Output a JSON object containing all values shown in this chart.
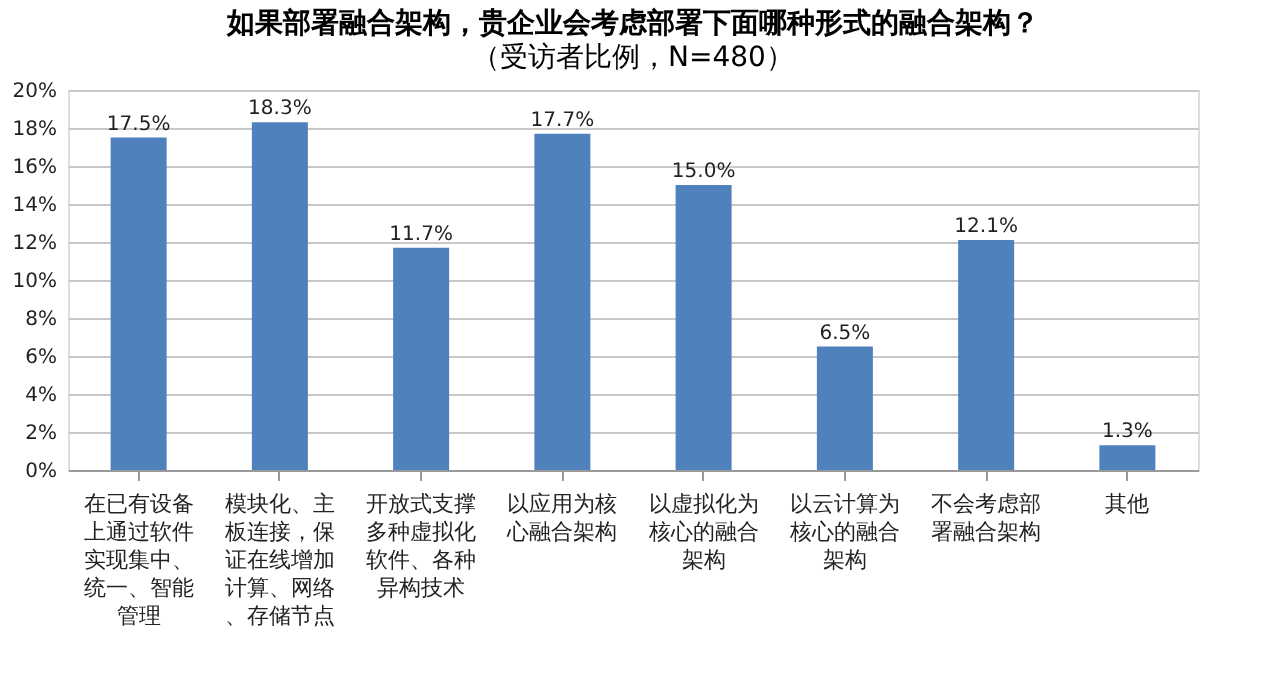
{
  "chart_data": {
    "type": "bar",
    "title": "如果部署融合架构，贵企业会考虑部署下面哪种形式的融合架构？",
    "subtitle": "（受访者比例，N=480）",
    "categories": [
      "在已有设备上通过软件实现集中、统一、智能管理",
      "模块化、主板连接，保证在线增加计算、网络、存储节点",
      "开放式支撑多种虚拟化软件、各种异构技术",
      "以应用为核心融合架构",
      "以虚拟化为核心的融合架构",
      "以云计算为核心的融合架构",
      "不会考虑部署融合架构",
      "其他"
    ],
    "values": [
      17.5,
      18.3,
      11.7,
      17.7,
      15.0,
      6.5,
      12.1,
      1.3
    ],
    "value_labels": [
      "17.5%",
      "18.3%",
      "11.7%",
      "17.7%",
      "15.0%",
      "6.5%",
      "12.1%",
      "1.3%"
    ],
    "color": "#4f81bd",
    "ylim": [
      0,
      20
    ],
    "yticks": [
      {
        "value": 0,
        "label": "0%"
      },
      {
        "value": 2,
        "label": "2%"
      },
      {
        "value": 4,
        "label": "4%"
      },
      {
        "value": 6,
        "label": "6%"
      },
      {
        "value": 8,
        "label": "8%"
      },
      {
        "value": 10,
        "label": "10%"
      },
      {
        "value": 12,
        "label": "12%"
      },
      {
        "value": 14,
        "label": "14%"
      },
      {
        "value": 16,
        "label": "16%"
      },
      {
        "value": 18,
        "label": "18%"
      },
      {
        "value": 20,
        "label": "20%"
      }
    ],
    "grid": "y"
  }
}
